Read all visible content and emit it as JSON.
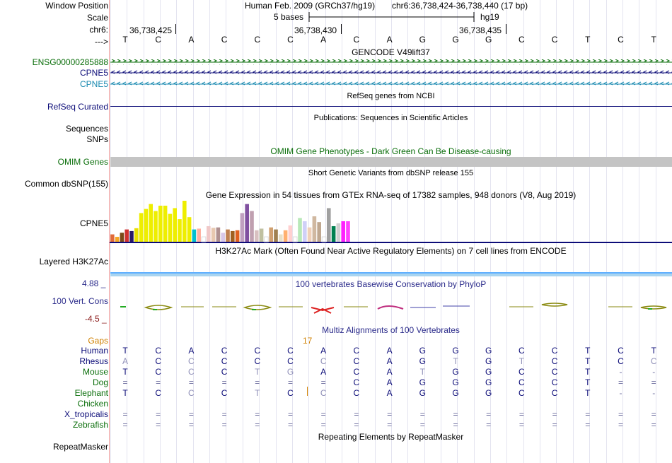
{
  "header": {
    "window_position_label": "Window Position",
    "scale_label": "Scale",
    "chrom_label": "chr6:",
    "arrow_label": "--->",
    "assembly_title": "Human Feb. 2009 (GRCh37/hg19)",
    "position_text": "chr6:36,738,424-36,738,440 (17 bp)",
    "scale_text": "5 bases",
    "scale_db": "hg19",
    "ticks": [
      "36,738,425",
      "36,738,430",
      "36,738,435"
    ]
  },
  "bases": [
    "T",
    "C",
    "A",
    "C",
    "C",
    "C",
    "A",
    "C",
    "A",
    "G",
    "G",
    "G",
    "C",
    "C",
    "T",
    "C",
    "T"
  ],
  "tracks": {
    "gencode": {
      "title": "GENCODE V49lift37",
      "items": [
        {
          "label": "ENSG00000285888",
          "color": "#0a6e0a"
        },
        {
          "label": "CPNE5",
          "color": "#0c0c78"
        },
        {
          "label": "CPNE5",
          "color": "#1a8ab0"
        }
      ]
    },
    "refseq": {
      "title": "RefSeq genes from NCBI",
      "label": "RefSeq Curated",
      "color": "#0c0c78"
    },
    "publications": {
      "title": "Publications: Sequences in Scientific Articles",
      "labels": [
        "Sequences",
        "SNPs"
      ]
    },
    "omim": {
      "title": "OMIM Gene Phenotypes - Dark Green Can Be Disease-causing",
      "label": "OMIM Genes",
      "color": "#0a6e0a"
    },
    "dbsnp": {
      "title": "Short Genetic Variants from dbSNP release 155",
      "label": "Common dbSNP(155)"
    },
    "gtex": {
      "title": "Gene Expression in 54 tissues from GTEx RNA-seq of 17382 samples, 948 donors (V8, Aug 2019)",
      "label": "CPNE5",
      "bars": [
        {
          "v": 0.18,
          "c": "#e06a3a"
        },
        {
          "v": 0.12,
          "c": "#f5a623"
        },
        {
          "v": 0.22,
          "c": "#7a4a1a"
        },
        {
          "v": 0.3,
          "c": "#d03030"
        },
        {
          "v": 0.26,
          "c": "#2a1a6a"
        },
        {
          "v": 0.33,
          "c": "#e8e000"
        },
        {
          "v": 0.7,
          "c": "#eeee00"
        },
        {
          "v": 0.8,
          "c": "#eeee00"
        },
        {
          "v": 0.92,
          "c": "#eeee00"
        },
        {
          "v": 0.75,
          "c": "#eeee00"
        },
        {
          "v": 0.88,
          "c": "#eeee00"
        },
        {
          "v": 0.88,
          "c": "#eeee00"
        },
        {
          "v": 0.68,
          "c": "#eeee00"
        },
        {
          "v": 0.82,
          "c": "#eeee00"
        },
        {
          "v": 0.55,
          "c": "#eeee00"
        },
        {
          "v": 1.0,
          "c": "#eeee00"
        },
        {
          "v": 0.6,
          "c": "#eeee00"
        },
        {
          "v": 0.3,
          "c": "#00c0d0"
        },
        {
          "v": 0.32,
          "c": "#ffb0a0"
        },
        {
          "v": 0.12,
          "c": "#ffffff"
        },
        {
          "v": 0.38,
          "c": "#f0c8c8"
        },
        {
          "v": 0.34,
          "c": "#e8c8b0"
        },
        {
          "v": 0.35,
          "c": "#b09090"
        },
        {
          "v": 0.22,
          "c": "#d8c8e8"
        },
        {
          "v": 0.3,
          "c": "#c08050"
        },
        {
          "v": 0.26,
          "c": "#a06020"
        },
        {
          "v": 0.28,
          "c": "#e06020"
        },
        {
          "v": 0.7,
          "c": "#c0a0c0"
        },
        {
          "v": 0.92,
          "c": "#8050a0"
        },
        {
          "v": 0.75,
          "c": "#c0a0b0"
        },
        {
          "v": 0.28,
          "c": "#d8c0c0"
        },
        {
          "v": 0.32,
          "c": "#c0c0a0"
        },
        {
          "v": 0.12,
          "c": "#ffffff"
        },
        {
          "v": 0.35,
          "c": "#d0a070"
        },
        {
          "v": 0.3,
          "c": "#a08050"
        },
        {
          "v": 0.18,
          "c": "#e8e0c8"
        },
        {
          "v": 0.28,
          "c": "#ffb070"
        },
        {
          "v": 0.4,
          "c": "#ffd0d0"
        },
        {
          "v": 0.12,
          "c": "#ffffff"
        },
        {
          "v": 0.58,
          "c": "#b8e8b8"
        },
        {
          "v": 0.5,
          "c": "#d0d0f8"
        },
        {
          "v": 0.35,
          "c": "#f0d0b8"
        },
        {
          "v": 0.62,
          "c": "#d0b8a0"
        },
        {
          "v": 0.48,
          "c": "#c0a890"
        },
        {
          "v": 0.12,
          "c": "#ffffff"
        },
        {
          "v": 0.82,
          "c": "#a0a0a0"
        },
        {
          "v": 0.38,
          "c": "#008050"
        },
        {
          "v": 0.45,
          "c": "#d0d0d0"
        },
        {
          "v": 0.5,
          "c": "#ff20ff"
        },
        {
          "v": 0.5,
          "c": "#ff40ff"
        }
      ]
    },
    "h3k27ac": {
      "title": "H3K27Ac Mark (Often Found Near Active Regulatory Elements) on 7 cell lines from ENCODE",
      "label": "Layered H3K27Ac"
    },
    "cons": {
      "title": "100 vertebrates Basewise Conservation by PhyloP",
      "label": "100 Vert. Cons",
      "max": "4.88 _",
      "min": "-4.5 _"
    },
    "multiz": {
      "title": "Multiz Alignments of 100 Vertebrates",
      "gaps_label": "Gaps",
      "gap_count": "17",
      "species": [
        {
          "name": "Human",
          "seq": [
            "T",
            "C",
            "A",
            "C",
            "C",
            "C",
            "A",
            "C",
            "A",
            "G",
            "G",
            "G",
            "C",
            "C",
            "T",
            "C",
            "T"
          ]
        },
        {
          "name": "Rhesus",
          "seq": [
            "A",
            "C",
            "C",
            "C",
            "C",
            "C",
            "C",
            "C",
            "A",
            "G",
            "T",
            "G",
            "T",
            "C",
            "T",
            "C",
            "C"
          ]
        },
        {
          "name": "Mouse",
          "seq": [
            "T",
            "C",
            "C",
            "C",
            "T",
            "G",
            "A",
            "C",
            "A",
            "T",
            "G",
            "G",
            "C",
            "C",
            "T",
            "-",
            "-"
          ]
        },
        {
          "name": "Dog",
          "seq": [
            "=",
            "=",
            "=",
            "=",
            "=",
            "=",
            "=",
            "C",
            "A",
            "G",
            "G",
            "G",
            "C",
            "C",
            "T",
            "=",
            "="
          ]
        },
        {
          "name": "Elephant",
          "seq": [
            "T",
            "C",
            "C",
            "C",
            "T",
            "C",
            "C",
            "C",
            "A",
            "G",
            "G",
            "G",
            "C",
            "C",
            "T",
            "-",
            "-"
          ]
        },
        {
          "name": "Chicken",
          "seq": [
            "",
            "",
            "",
            "",
            "",
            "",
            "",
            "",
            "",
            "",
            "",
            "",
            "",
            "",
            "",
            "",
            ""
          ]
        },
        {
          "name": "X_tropicalis",
          "seq": [
            "=",
            "=",
            "=",
            "=",
            "=",
            "=",
            "=",
            "=",
            "=",
            "=",
            "=",
            "=",
            "=",
            "=",
            "=",
            "=",
            "="
          ]
        },
        {
          "name": "Zebrafish",
          "seq": [
            "=",
            "=",
            "=",
            "=",
            "=",
            "=",
            "=",
            "=",
            "=",
            "=",
            "=",
            "=",
            "=",
            "=",
            "=",
            "=",
            "="
          ]
        }
      ]
    },
    "repeatmasker": {
      "title": "Repeating Elements by RepeatMasker",
      "label": "RepeatMasker"
    }
  },
  "colors": {
    "label_green": "#0a6e0a",
    "label_navy": "#0c0c78",
    "label_blue": "#1a8ab0",
    "cons_navy": "#2a2a8a",
    "gaps_orange": "#d08000"
  }
}
